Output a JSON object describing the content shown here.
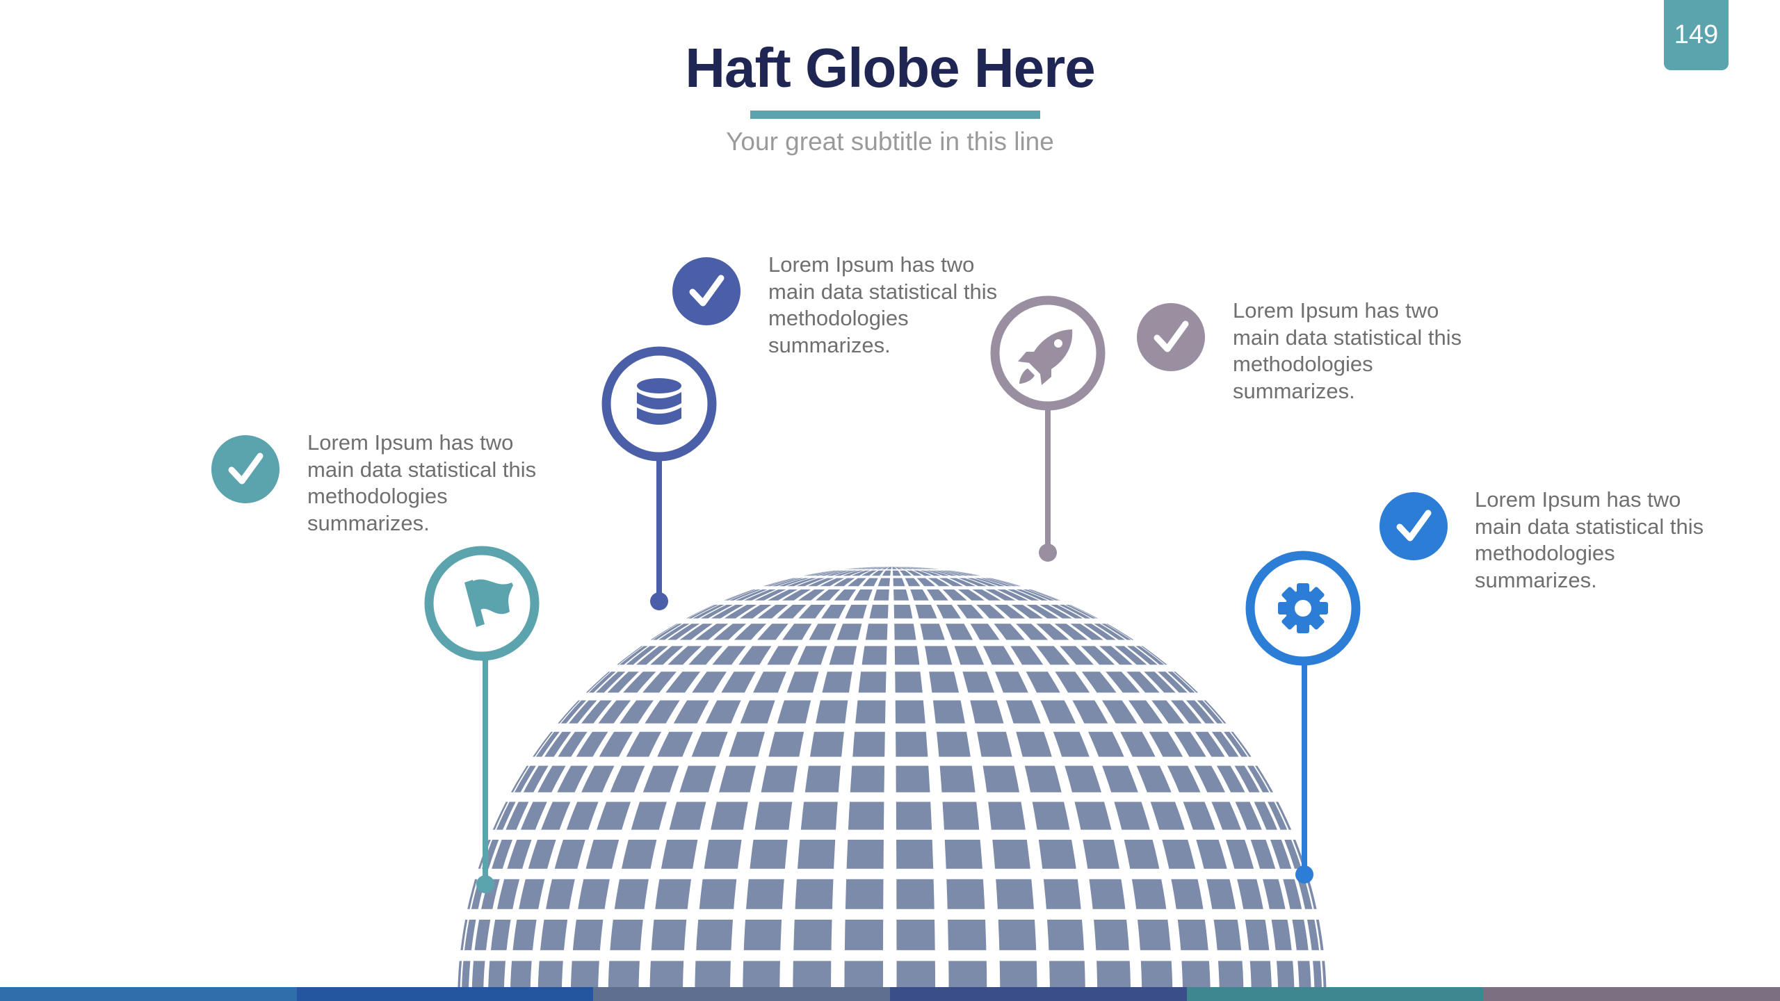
{
  "page_number": "149",
  "title": "Haft Globe Here",
  "subtitle": "Your great subtitle in this line",
  "colors": {
    "navy": "#1f2654",
    "teal": "#5ba3ad",
    "indigo": "#4a5fa8",
    "mauve": "#9a8fa0",
    "blue": "#2b7dd6",
    "globe": "#7d8baa"
  },
  "pins": [
    {
      "name": "flag",
      "icon": "flag-icon",
      "color": "#5ba3ad"
    },
    {
      "name": "database",
      "icon": "database-icon",
      "color": "#4a5fa8"
    },
    {
      "name": "rocket",
      "icon": "rocket-icon",
      "color": "#9a8fa0"
    },
    {
      "name": "gear",
      "icon": "gear-icon",
      "color": "#2b7dd6"
    }
  ],
  "items": [
    {
      "icon": "check-icon",
      "color": "#5ba3ad",
      "text": "Lorem Ipsum has two main data statistical this methodologies summarizes."
    },
    {
      "icon": "check-icon",
      "color": "#4a5fa8",
      "text": "Lorem Ipsum has two main data statistical this methodologies summarizes."
    },
    {
      "icon": "check-icon",
      "color": "#9a8fa0",
      "text": "Lorem Ipsum has two main data statistical this methodologies summarizes."
    },
    {
      "icon": "check-icon",
      "color": "#2b7dd6",
      "text": "Lorem Ipsum has two main data statistical this methodologies summarizes."
    }
  ],
  "bottom_bar_colors": [
    "#2f6eaa",
    "#2456a0",
    "#5e6f8f",
    "#3a4f8a",
    "#3f8790",
    "#7c6f82"
  ]
}
